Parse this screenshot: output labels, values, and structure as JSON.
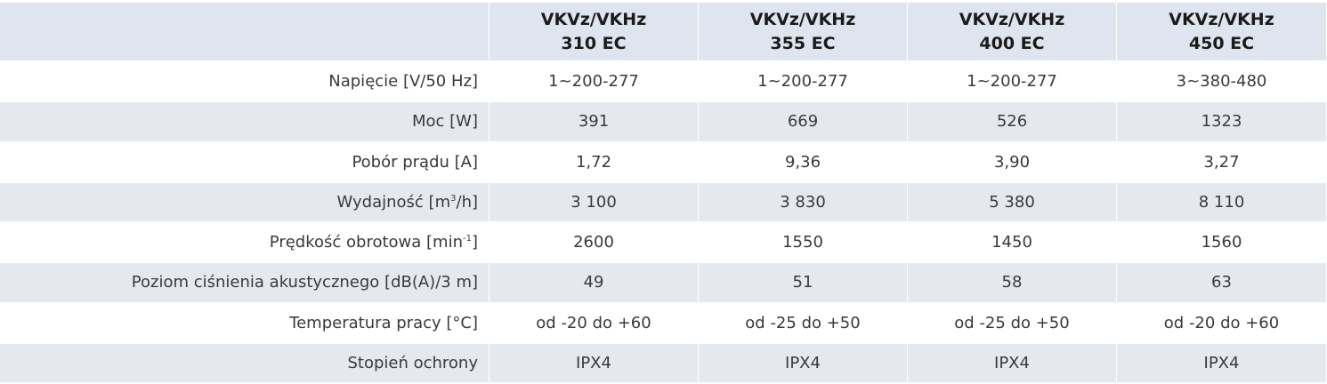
{
  "table": {
    "columns": [
      {
        "line1": "VKVz/VKHz",
        "line2": "310 EC"
      },
      {
        "line1": "VKVz/VKHz",
        "line2": "355 EC"
      },
      {
        "line1": "VKVz/VKHz",
        "line2": "400 EC"
      },
      {
        "line1": "VKVz/VKHz",
        "line2": "450 EC"
      }
    ],
    "rows": [
      {
        "label": "Napięcie [V/50 Hz]",
        "values": [
          "1~200-277",
          "1~200-277",
          "1~200-277",
          "3~380-480"
        ]
      },
      {
        "label": "Moc [W]",
        "values": [
          "391",
          "669",
          "526",
          "1323"
        ]
      },
      {
        "label": "Pobór prądu [A]",
        "values": [
          "1,72",
          "9,36",
          "3,90",
          "3,27"
        ]
      },
      {
        "label_pre": "Wydajność [m",
        "label_sup": "3",
        "label_post": "/h]",
        "values": [
          "3 100",
          "3 830",
          "5 380",
          "8 110"
        ]
      },
      {
        "label_pre": "Prędkość obrotowa [min",
        "label_sup": "-1",
        "label_post": "]",
        "values": [
          "2600",
          "1550",
          "1450",
          "1560"
        ]
      },
      {
        "label": "Poziom ciśnienia akustycznego [dB(A)/3 m]",
        "values": [
          "49",
          "51",
          "58",
          "63"
        ]
      },
      {
        "label": "Temperatura pracy [°C]",
        "values": [
          "od -20 do +60",
          "od -25 do +50",
          "od -25 do +50",
          "od -20 do +60"
        ]
      },
      {
        "label": "Stopień ochrony",
        "values": [
          "IPX4",
          "IPX4",
          "IPX4",
          "IPX4"
        ]
      }
    ]
  }
}
